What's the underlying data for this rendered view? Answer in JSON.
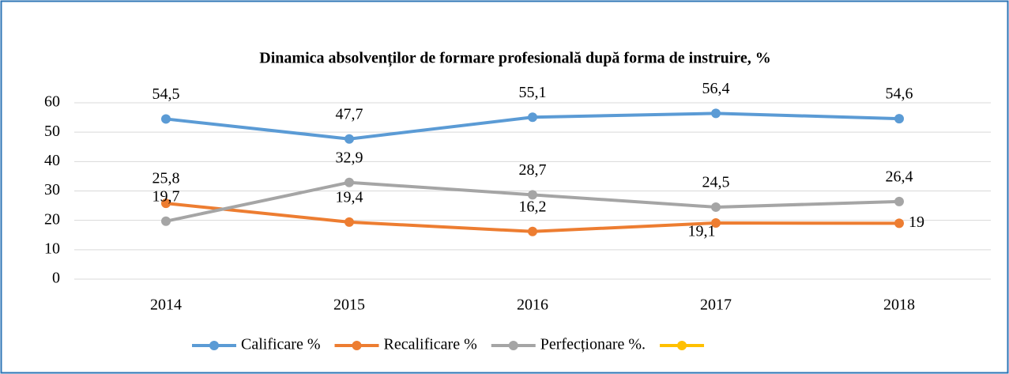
{
  "chart_data": {
    "type": "line",
    "title": "Dinamica absolvenților de formare profesională după forma de instruire, %",
    "categories": [
      "2014",
      "2015",
      "2016",
      "2017",
      "2018"
    ],
    "series": [
      {
        "name": "Calificare %",
        "color": "#5b9bd5",
        "values": [
          54.5,
          47.7,
          55.1,
          56.4,
          54.6
        ],
        "value_labels": [
          "54,5",
          "47,7",
          "55,1",
          "56,4",
          "54,6"
        ]
      },
      {
        "name": "Recalificare %",
        "color": "#ed7d31",
        "values": [
          25.8,
          19.4,
          16.2,
          19.1,
          19
        ],
        "value_labels": [
          "25,8",
          "19,4",
          "16,2",
          "19,1",
          "19"
        ]
      },
      {
        "name": "Perfecționare %.",
        "color": "#a5a5a5",
        "values": [
          19.7,
          32.9,
          28.7,
          24.5,
          26.4
        ],
        "value_labels": [
          "19,7",
          "32,9",
          "28,7",
          "24,5",
          "26,4"
        ]
      },
      {
        "name": null,
        "color": "#ffc000",
        "values": [
          null,
          null,
          null,
          null,
          null
        ]
      }
    ],
    "ylim": [
      0,
      60
    ],
    "yticks": [
      0,
      10,
      20,
      30,
      40,
      50,
      60
    ],
    "grid": true,
    "legend": "bottom"
  }
}
